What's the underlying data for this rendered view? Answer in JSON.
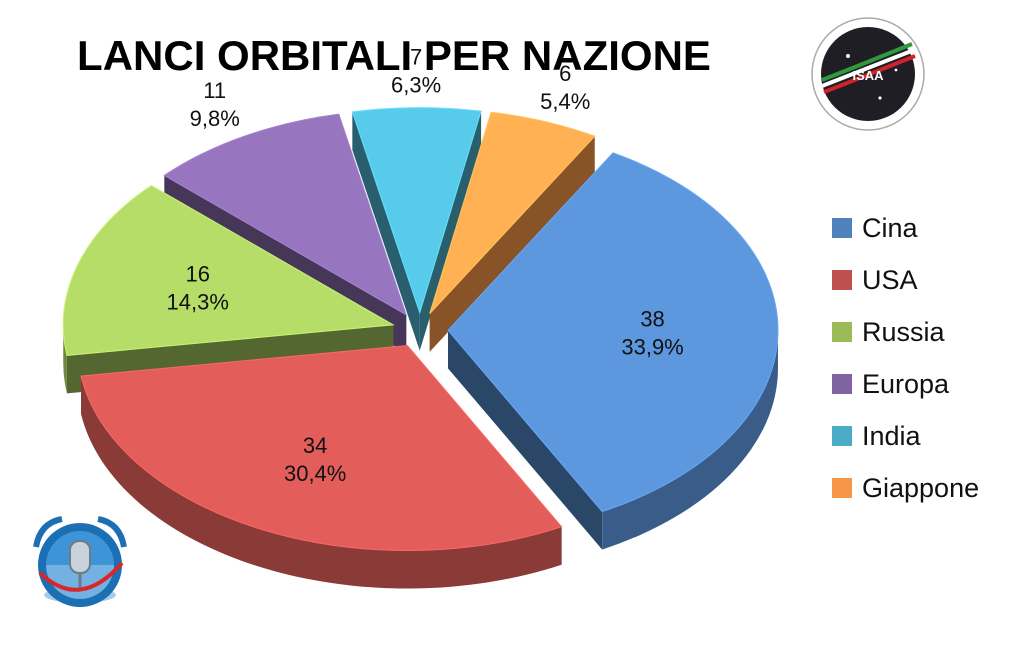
{
  "chart_data": {
    "type": "pie",
    "title": "LANCI ORBITALI PER NAZIONE",
    "categories": [
      "Cina",
      "USA",
      "Russia",
      "Europa",
      "India",
      "Giappone"
    ],
    "values": [
      38,
      34,
      16,
      11,
      7,
      6
    ],
    "percent_labels": [
      "33,9%",
      "30,4%",
      "14,3%",
      "9,8%",
      "6,3%",
      "5,4%"
    ],
    "colors": [
      "#4f81bd",
      "#c0504d",
      "#9bbb59",
      "#8064a2",
      "#4bacc6",
      "#f79646"
    ],
    "exploded": true,
    "three_d": true,
    "legend_position": "right"
  },
  "logos": {
    "top_right": "ISAA",
    "bottom_left": "microphone-globe-logo"
  }
}
